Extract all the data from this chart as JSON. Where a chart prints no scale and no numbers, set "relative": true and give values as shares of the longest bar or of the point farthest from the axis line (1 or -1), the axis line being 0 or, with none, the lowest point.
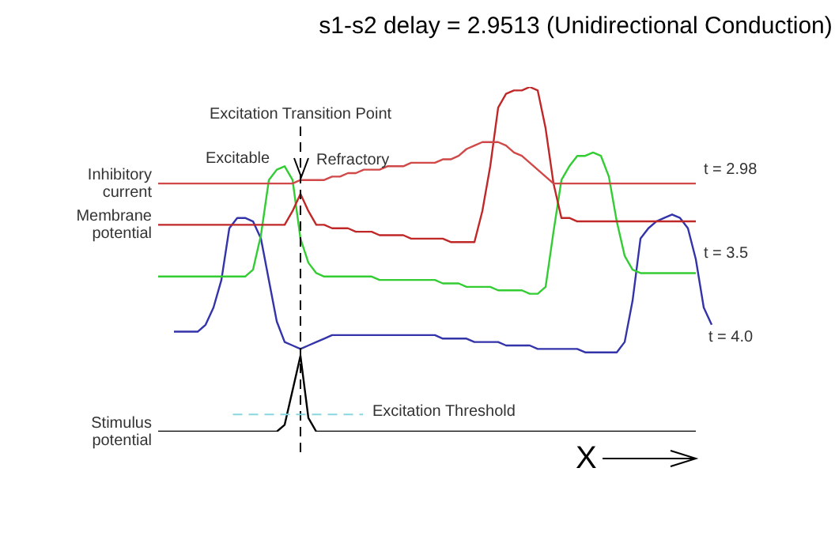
{
  "chart_data": {
    "type": "line",
    "title": "s1-s2 delay = 2.9513  (Unidirectional Conduction)",
    "xlabel": "X",
    "relative": true,
    "marker": "none",
    "line_style": "solid",
    "categories": [
      null,
      null,
      null,
      null,
      null,
      null,
      null,
      null,
      null,
      null,
      null,
      null,
      null,
      null,
      null,
      null,
      null,
      null,
      null,
      null,
      null,
      null,
      null,
      null,
      null,
      null,
      null,
      null,
      null,
      null,
      null,
      null,
      null,
      null,
      null,
      null,
      null,
      null,
      null,
      null,
      null,
      null,
      null,
      null,
      null,
      null,
      null,
      null,
      null,
      null,
      null,
      null,
      null,
      null,
      null,
      null,
      null,
      null,
      null,
      null,
      null,
      null,
      null,
      null,
      null,
      null,
      null,
      null,
      null,
      null,
      null
    ],
    "annotations": [
      "Excitation Transition Point",
      "t = 2.98",
      "t = 3.5",
      "t = 4.0",
      "Excitable",
      "Refractory"
    ],
    "ref_lines": [
      {
        "axis": "y",
        "value": 0.05,
        "label": "Excitation Threshold",
        "color": "#88d8e0",
        "line_style": "dashed"
      }
    ],
    "series": [
      {
        "name": "Inhibitory current",
        "color": "#d04848",
        "values": [
          0.72,
          0.72,
          0.72,
          0.72,
          0.72,
          0.72,
          0.72,
          0.72,
          0.72,
          0.72,
          0.72,
          0.72,
          0.72,
          0.72,
          0.72,
          0.72,
          0.72,
          0.72,
          0.73,
          0.73,
          0.73,
          0.73,
          0.74,
          0.74,
          0.75,
          0.75,
          0.76,
          0.76,
          0.76,
          0.77,
          0.77,
          0.77,
          0.78,
          0.78,
          0.78,
          0.78,
          0.79,
          0.79,
          0.8,
          0.82,
          0.83,
          0.84,
          0.84,
          0.84,
          0.83,
          0.81,
          0.8,
          0.78,
          0.76,
          0.74,
          0.72,
          0.72,
          0.72,
          0.72,
          0.72,
          0.72,
          0.72,
          0.72,
          0.72,
          0.72,
          0.72,
          0.72,
          0.72,
          0.72,
          0.72,
          0.72,
          0.72,
          0.72,
          0.72,
          null,
          null
        ]
      },
      {
        "name": "Membrane potential",
        "color": "#c02828",
        "values": [
          0.6,
          0.6,
          0.6,
          0.6,
          0.6,
          0.6,
          0.6,
          0.6,
          0.6,
          0.6,
          0.6,
          0.6,
          0.6,
          0.6,
          0.6,
          0.6,
          0.6,
          0.64,
          0.69,
          0.64,
          0.6,
          0.6,
          0.59,
          0.59,
          0.59,
          0.58,
          0.58,
          0.58,
          0.57,
          0.57,
          0.57,
          0.57,
          0.56,
          0.56,
          0.56,
          0.56,
          0.56,
          0.55,
          0.55,
          0.55,
          0.55,
          0.64,
          0.77,
          0.94,
          0.98,
          0.99,
          0.99,
          1,
          0.99,
          0.88,
          0.72,
          0.62,
          0.62,
          0.61,
          0.61,
          0.61,
          0.61,
          0.61,
          0.61,
          0.61,
          0.61,
          0.61,
          0.61,
          0.61,
          0.61,
          0.61,
          0.61,
          0.61,
          0.61,
          null,
          null
        ]
      },
      {
        "color": "#33cc33",
        "values": [
          0.45,
          0.45,
          0.45,
          0.45,
          0.45,
          0.45,
          0.45,
          0.45,
          0.45,
          0.45,
          0.45,
          0.45,
          0.47,
          0.57,
          0.73,
          0.76,
          0.77,
          0.73,
          0.56,
          0.49,
          0.46,
          0.45,
          0.45,
          0.45,
          0.45,
          0.45,
          0.45,
          0.45,
          0.44,
          0.44,
          0.44,
          0.44,
          0.44,
          0.44,
          0.44,
          0.44,
          0.43,
          0.43,
          0.43,
          0.42,
          0.42,
          0.42,
          0.42,
          0.41,
          0.41,
          0.41,
          0.41,
          0.4,
          0.4,
          0.42,
          0.58,
          0.73,
          0.77,
          0.8,
          0.8,
          0.81,
          0.8,
          0.74,
          0.61,
          0.51,
          0.47,
          0.46,
          0.46,
          0.46,
          0.46,
          0.46,
          0.46,
          0.46,
          0.46,
          null,
          null
        ]
      },
      {
        "color": "#3333aa",
        "values": [
          null,
          null,
          0.29,
          0.29,
          0.29,
          0.29,
          0.31,
          0.36,
          0.44,
          0.59,
          0.62,
          0.62,
          0.61,
          0.56,
          0.44,
          0.32,
          0.26,
          0.25,
          0.24,
          0.25,
          0.26,
          0.27,
          0.28,
          0.28,
          0.28,
          0.28,
          0.28,
          0.28,
          0.28,
          0.28,
          0.28,
          0.28,
          0.28,
          0.28,
          0.28,
          0.28,
          0.27,
          0.27,
          0.27,
          0.27,
          0.26,
          0.26,
          0.26,
          0.26,
          0.25,
          0.25,
          0.25,
          0.25,
          0.24,
          0.24,
          0.24,
          0.24,
          0.24,
          0.24,
          0.23,
          0.23,
          0.23,
          0.23,
          0.23,
          0.26,
          0.38,
          0.56,
          0.59,
          0.61,
          0.62,
          0.63,
          0.62,
          0.59,
          0.5,
          0.36,
          0.31
        ]
      },
      {
        "name": "Stimulus potential",
        "color": "#000000",
        "values": [
          0,
          0,
          0,
          0,
          0,
          0,
          0,
          0,
          0,
          0,
          0,
          0,
          0,
          0,
          0,
          0,
          0.02,
          0.12,
          0.22,
          0.04,
          0,
          0,
          0,
          0,
          0,
          0,
          0,
          0,
          0,
          0,
          0,
          0,
          0,
          0,
          0,
          0,
          0,
          0,
          0,
          0,
          0,
          0,
          0,
          0,
          0,
          0,
          0,
          0,
          0,
          0,
          0,
          0,
          0,
          0,
          0,
          0,
          0,
          0,
          0,
          0,
          0,
          0,
          0,
          0,
          0,
          0,
          0,
          0,
          0,
          null,
          null
        ]
      }
    ]
  }
}
